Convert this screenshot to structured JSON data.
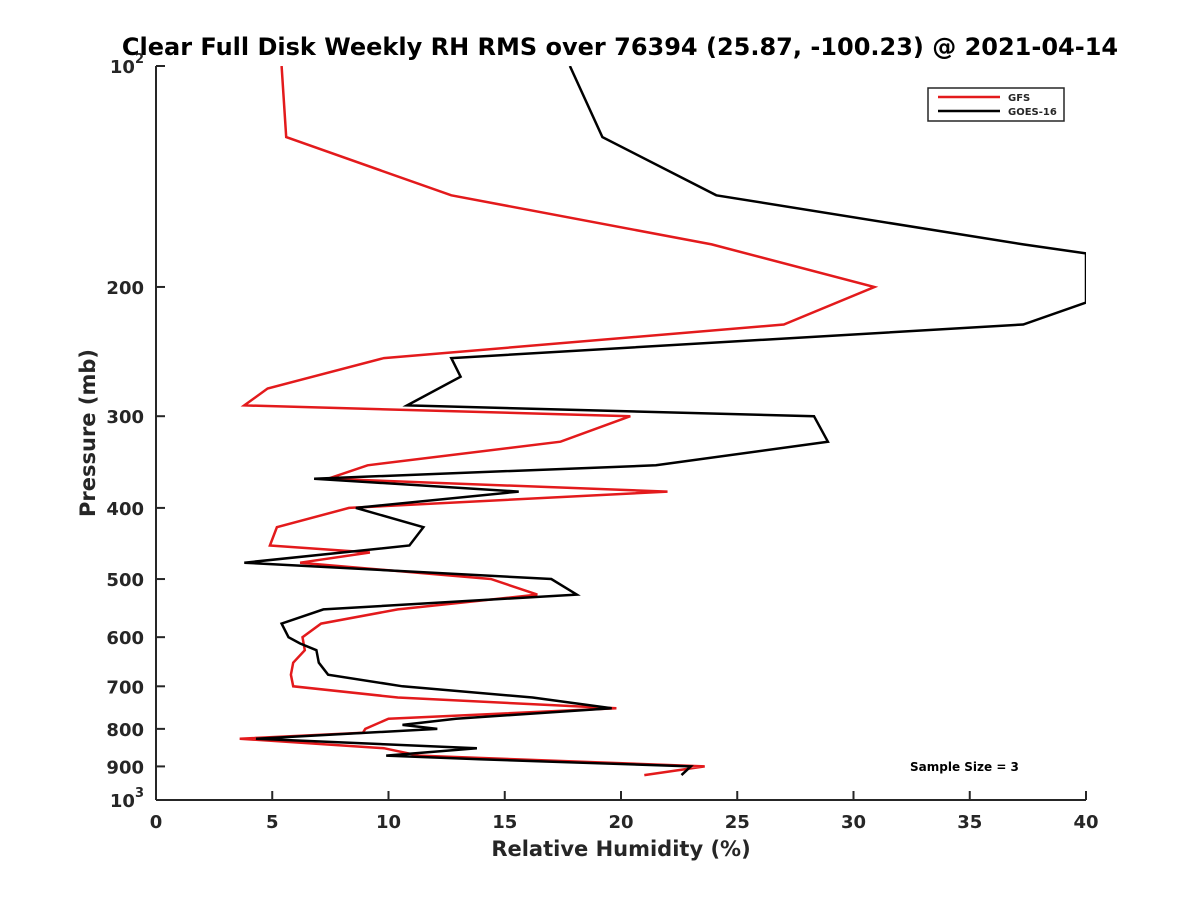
{
  "chart_data": {
    "type": "line",
    "title": "Clear Full Disk Weekly RH RMS over 76394 (25.87, -100.23) @ 2021-04-14",
    "xlabel": "Relative Humidity (%)",
    "ylabel": "Pressure (mb)",
    "xlim": [
      0,
      40
    ],
    "ylim": [
      100,
      1000
    ],
    "y_scale": "log",
    "y_reversed": true,
    "grid": false,
    "legend_position": "top-right",
    "x_ticks": [
      "0",
      "5",
      "10",
      "15",
      "20",
      "25",
      "30",
      "35",
      "40"
    ],
    "y_ticks": [
      {
        "value": 100,
        "base": "10",
        "exp": "2"
      },
      {
        "value": 200,
        "label": "200"
      },
      {
        "value": 300,
        "label": "300"
      },
      {
        "value": 400,
        "label": "400"
      },
      {
        "value": 500,
        "label": "500"
      },
      {
        "value": 600,
        "label": "600"
      },
      {
        "value": 700,
        "label": "700"
      },
      {
        "value": 800,
        "label": "800"
      },
      {
        "value": 900,
        "label": "900"
      },
      {
        "value": 1000,
        "base": "10",
        "exp": "3"
      }
    ],
    "annotation": "Sample Size = 3",
    "series": [
      {
        "name": "GFS",
        "color": "#e31a1c",
        "points": [
          [
            5.4,
            100
          ],
          [
            5.6,
            125
          ],
          [
            12.7,
            150
          ],
          [
            23.9,
            175
          ],
          [
            30.9,
            200
          ],
          [
            27.0,
            225
          ],
          [
            9.8,
            250
          ],
          [
            4.8,
            275
          ],
          [
            3.8,
            290
          ],
          [
            20.4,
            300
          ],
          [
            17.4,
            325
          ],
          [
            9.1,
            350
          ],
          [
            7.4,
            365
          ],
          [
            22.0,
            380
          ],
          [
            8.3,
            400
          ],
          [
            5.2,
            425
          ],
          [
            4.9,
            450
          ],
          [
            9.2,
            460
          ],
          [
            6.2,
            475
          ],
          [
            14.4,
            500
          ],
          [
            16.4,
            525
          ],
          [
            10.4,
            550
          ],
          [
            7.1,
            575
          ],
          [
            6.3,
            600
          ],
          [
            6.4,
            625
          ],
          [
            5.9,
            650
          ],
          [
            5.8,
            675
          ],
          [
            5.9,
            700
          ],
          [
            10.4,
            725
          ],
          [
            19.8,
            750
          ],
          [
            10.0,
            775
          ],
          [
            9.0,
            800
          ],
          [
            8.9,
            810
          ],
          [
            3.6,
            825
          ],
          [
            9.8,
            850
          ],
          [
            11.3,
            870
          ],
          [
            23.6,
            900
          ],
          [
            21.0,
            925
          ]
        ]
      },
      {
        "name": "GOES-16",
        "color": "#000000",
        "points": [
          [
            17.8,
            100
          ],
          [
            19.2,
            125
          ],
          [
            24.1,
            150
          ],
          [
            37.3,
            175
          ],
          [
            40.0,
            180
          ],
          [
            40.0,
            210
          ],
          [
            37.3,
            225
          ],
          [
            12.7,
            250
          ],
          [
            13.1,
            265
          ],
          [
            10.8,
            290
          ],
          [
            28.3,
            300
          ],
          [
            28.9,
            325
          ],
          [
            21.5,
            350
          ],
          [
            6.8,
            365
          ],
          [
            15.6,
            380
          ],
          [
            8.6,
            400
          ],
          [
            11.5,
            425
          ],
          [
            10.9,
            450
          ],
          [
            3.8,
            475
          ],
          [
            17.0,
            500
          ],
          [
            18.1,
            525
          ],
          [
            7.2,
            550
          ],
          [
            5.4,
            575
          ],
          [
            5.7,
            600
          ],
          [
            6.2,
            612
          ],
          [
            6.9,
            625
          ],
          [
            7.0,
            650
          ],
          [
            7.4,
            675
          ],
          [
            10.6,
            700
          ],
          [
            16.2,
            725
          ],
          [
            19.6,
            750
          ],
          [
            12.9,
            775
          ],
          [
            10.6,
            790
          ],
          [
            12.1,
            800
          ],
          [
            4.3,
            825
          ],
          [
            13.8,
            850
          ],
          [
            9.9,
            870
          ],
          [
            13.9,
            880
          ],
          [
            23.0,
            900
          ],
          [
            22.6,
            925
          ]
        ]
      }
    ]
  }
}
